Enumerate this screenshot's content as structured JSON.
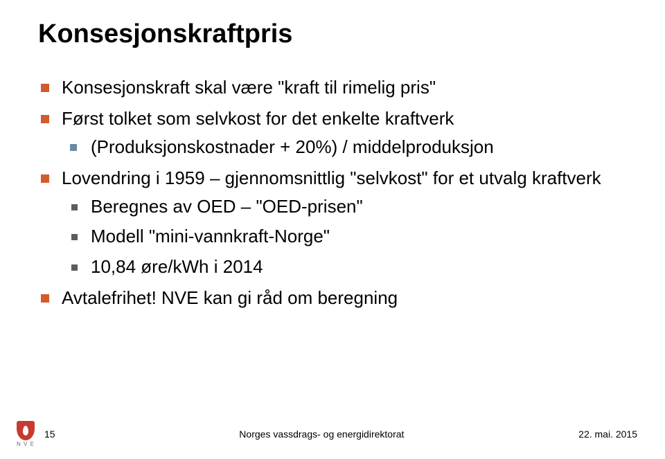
{
  "colors": {
    "bg": "#ffffff",
    "text": "#000000",
    "bullet_lvl1": "#d35a2b",
    "bullet_lvl2": "#6a8aa4",
    "bullet_lvl3": "#5c5c5c",
    "logo_shield": "#c63b2f",
    "logo_text": "#6b6b6b"
  },
  "typography": {
    "title_fontsize": 38,
    "body_fontsize": 26,
    "footer_fontsize": 14,
    "title_weight": "bold",
    "font_family": "Arial"
  },
  "title": "Konsesjonskraftpris",
  "bullets": [
    {
      "text": "Konsesjonskraft skal være \"kraft til rimelig pris\"",
      "children": []
    },
    {
      "text": "Først tolket som selvkost for det enkelte kraftverk",
      "children": [
        {
          "text": "(Produksjonskostnader + 20%) / middelproduksjon",
          "children": []
        }
      ]
    },
    {
      "text": "Lovendring i 1959 – gjennomsnittlig \"selvkost\" for et utvalg kraftverk",
      "children": [
        {
          "text": "Beregnes av OED  – \"OED-prisen\"",
          "children": []
        },
        {
          "text": "Modell \"mini-vannkraft-Norge\"",
          "children": []
        },
        {
          "text": "10,84 øre/kWh i 2014",
          "children": []
        }
      ]
    },
    {
      "text": "Avtalefrihet! NVE kan gi råd om beregning",
      "children": []
    }
  ],
  "footer": {
    "logo_text": "N V E",
    "page_number": "15",
    "center_text": "Norges vassdrags- og energidirektorat",
    "date": "22. mai. 2015"
  }
}
